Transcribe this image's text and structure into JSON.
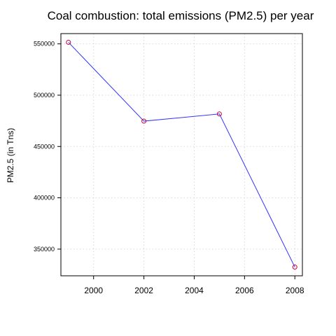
{
  "chart_data": {
    "type": "line",
    "title": "Coal combustion: total emissions (PM2.5) per year",
    "xlabel": "",
    "ylabel": "PM2.5 (in Tns)",
    "x": [
      1999,
      2002,
      2005,
      2008
    ],
    "series": [
      {
        "values": [
          551500,
          474700,
          481700,
          332500
        ]
      }
    ],
    "xlim": [
      1998.7,
      2008.3
    ],
    "ylim": [
      324000,
      560000
    ],
    "xticks": [
      2000,
      2002,
      2004,
      2006,
      2008
    ],
    "xtick_labels": [
      "2000",
      "2002",
      "2004",
      "2006",
      "2008"
    ],
    "yticks": [
      350000,
      400000,
      450000,
      500000,
      550000
    ],
    "ytick_labels": [
      "350000",
      "400000",
      "450000",
      "500000",
      "550000"
    ],
    "grid": true,
    "grid_style": "dotted",
    "line_color": "#3333ff",
    "marker_color": "#cc0033",
    "marker_style": "open-circle",
    "grid_color": "#d9d9d9"
  }
}
